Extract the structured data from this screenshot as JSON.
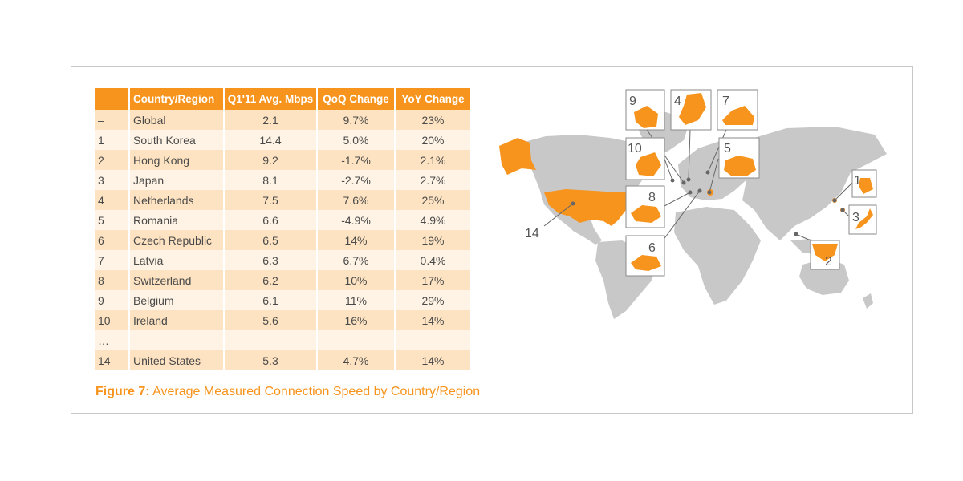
{
  "chart_data": {
    "type": "table",
    "columns": [
      "",
      "Country/Region",
      "Q1'11 Avg. Mbps",
      "QoQ Change",
      "YoY Change"
    ],
    "rows": [
      [
        "–",
        "Global",
        "2.1",
        "9.7%",
        "23%"
      ],
      [
        "1",
        "South Korea",
        "14.4",
        "5.0%",
        "20%"
      ],
      [
        "2",
        "Hong Kong",
        "9.2",
        "-1.7%",
        "2.1%"
      ],
      [
        "3",
        "Japan",
        "8.1",
        "-2.7%",
        "2.7%"
      ],
      [
        "4",
        "Netherlands",
        "7.5",
        "7.6%",
        "25%"
      ],
      [
        "5",
        "Romania",
        "6.6",
        "-4.9%",
        "4.9%"
      ],
      [
        "6",
        "Czech Republic",
        "6.5",
        "14%",
        "19%"
      ],
      [
        "7",
        "Latvia",
        "6.3",
        "6.7%",
        "0.4%"
      ],
      [
        "8",
        "Switzerland",
        "6.2",
        "10%",
        "17%"
      ],
      [
        "9",
        "Belgium",
        "6.1",
        "11%",
        "29%"
      ],
      [
        "10",
        "Ireland",
        "5.6",
        "16%",
        "14%"
      ],
      [
        "…",
        "",
        "",
        "",
        ""
      ],
      [
        "14",
        "United States",
        "5.3",
        "4.7%",
        "14%"
      ]
    ]
  },
  "caption": {
    "figure": "Figure 7:",
    "text": "Average Measured Connection Speed by Country/Region"
  },
  "map": {
    "callouts": [
      "1",
      "2",
      "3",
      "4",
      "5",
      "6",
      "7",
      "8",
      "9",
      "10",
      "14"
    ],
    "colors": {
      "highlight": "#f7941d",
      "land": "#c8c8c8",
      "callout_border": "#8a8a8a"
    }
  }
}
